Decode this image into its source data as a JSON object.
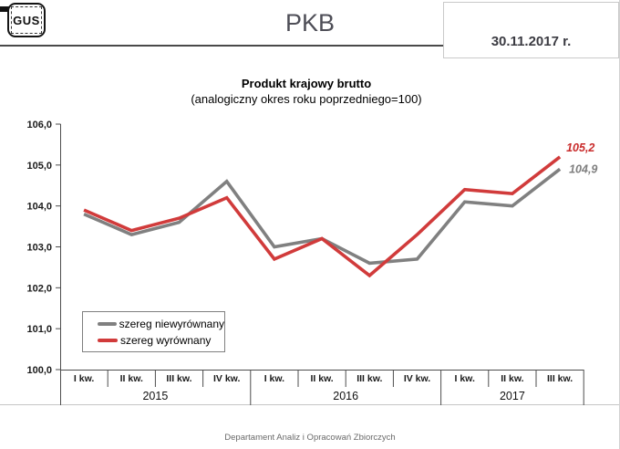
{
  "header": {
    "logo_text": "GUS",
    "title": "PKB",
    "date": "30.11.2017 r."
  },
  "chart_data": {
    "type": "line",
    "title": "Produkt krajowy brutto",
    "subtitle": "(analogiczny okres roku poprzedniego=100)",
    "categories": [
      "I kw.",
      "II kw.",
      "III kw.",
      "IV kw.",
      "I kw.",
      "II kw.",
      "III kw.",
      "IV kw.",
      "I kw.",
      "II kw.",
      "III kw."
    ],
    "year_groups": [
      {
        "label": "2015",
        "span": 4
      },
      {
        "label": "2016",
        "span": 4
      },
      {
        "label": "2017",
        "span": 3
      }
    ],
    "series": [
      {
        "name": "szereg niewyrównany",
        "color": "#808080",
        "values": [
          103.8,
          103.3,
          103.6,
          104.6,
          103.0,
          103.2,
          102.6,
          102.7,
          104.1,
          104.0,
          104.9
        ],
        "end_label": "104,9",
        "end_label_color": "#7f7f7f"
      },
      {
        "name": "szereg wyrównany",
        "color": "#d13b3b",
        "values": [
          103.9,
          103.4,
          103.7,
          104.2,
          102.7,
          103.2,
          102.3,
          103.3,
          104.4,
          104.3,
          105.2
        ],
        "end_label": "105,2",
        "end_label_color": "#c92b2b"
      }
    ],
    "ylim": [
      100,
      106
    ],
    "yticks": [
      "100,0",
      "101,0",
      "102,0",
      "103,0",
      "104,0",
      "105,0",
      "106,0"
    ],
    "grid": false,
    "legend_position": "inside-bottom-left"
  },
  "footer": {
    "text": "Departament Analiz i Opracowań Zbiorczych"
  }
}
